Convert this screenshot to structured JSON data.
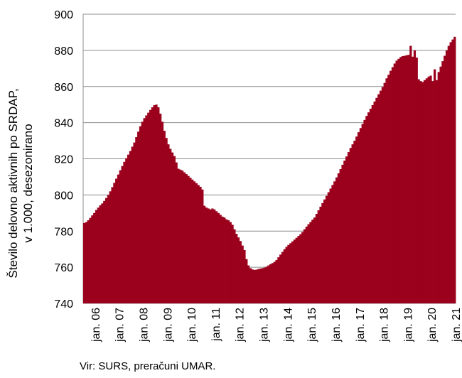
{
  "chart_data": {
    "type": "area",
    "ylabel_line1": "Število delovno aktivnih po SRDAP,",
    "ylabel_line2": "v 1.000, desezonirano",
    "ylim": [
      740,
      900
    ],
    "yticks": [
      740,
      760,
      780,
      800,
      820,
      840,
      860,
      880,
      900
    ],
    "xtick_labels": [
      "jan. 06",
      "jan. 07",
      "jan. 08",
      "jan. 09",
      "jan. 10",
      "jan. 11",
      "jan. 12",
      "jan. 13",
      "jan. 14",
      "jan. 15",
      "jan. 16",
      "jan. 17",
      "jan. 18",
      "jan. 19",
      "jan. 20",
      "jan. 21"
    ],
    "grid": true,
    "color": "#9b001c",
    "series": [
      {
        "start": "jan. 06",
        "frequency": "monthly",
        "values": [
          784.5,
          785.0,
          786.0,
          787.3,
          788.7,
          790.0,
          791.7,
          793.0,
          794.3,
          795.3,
          796.7,
          798.3,
          800.0,
          802.0,
          804.3,
          806.7,
          809.0,
          811.3,
          813.7,
          816.0,
          818.3,
          820.3,
          822.3,
          824.3,
          826.7,
          829.0,
          832.0,
          835.0,
          838.0,
          840.5,
          842.5,
          844.0,
          845.5,
          847.0,
          848.5,
          849.7,
          850.0,
          848.5,
          845.0,
          840.5,
          835.5,
          831.5,
          828.0,
          825.5,
          823.5,
          821.5,
          818.0,
          814.5,
          814.0,
          813.5,
          812.5,
          811.5,
          810.5,
          809.5,
          808.5,
          807.5,
          806.5,
          805.5,
          804.5,
          803.0,
          794.0,
          793.0,
          792.5,
          792.0,
          792.5,
          792.0,
          791.0,
          790.0,
          789.0,
          788.0,
          787.5,
          786.5,
          786.0,
          785.0,
          783.5,
          781.0,
          778.5,
          776.5,
          774.5,
          772.0,
          769.5,
          764.5,
          761.0,
          759.5,
          758.8,
          758.5,
          758.7,
          759.0,
          759.3,
          759.5,
          759.8,
          760.3,
          761.0,
          761.7,
          762.3,
          763.0,
          764.0,
          765.5,
          767.0,
          768.5,
          770.0,
          771.3,
          772.3,
          773.3,
          774.3,
          775.3,
          776.3,
          777.3,
          778.3,
          779.5,
          781.0,
          782.5,
          783.8,
          785.0,
          786.3,
          787.5,
          789.5,
          791.5,
          793.5,
          795.5,
          797.5,
          799.5,
          801.5,
          803.5,
          805.5,
          807.5,
          809.7,
          812.0,
          814.3,
          816.7,
          819.0,
          821.3,
          823.7,
          826.0,
          828.0,
          830.0,
          832.3,
          834.7,
          837.0,
          839.3,
          841.5,
          843.7,
          845.7,
          847.7,
          849.7,
          851.7,
          853.7,
          855.7,
          857.7,
          859.7,
          862.0,
          864.5,
          866.5,
          868.7,
          870.7,
          872.7,
          874.3,
          875.3,
          876.3,
          876.8,
          877.0,
          877.3,
          877.5,
          882.5,
          876.5,
          880.0,
          876.0,
          864.0,
          863.0,
          862.5,
          863.5,
          864.5,
          865.5,
          866.0,
          863.0,
          869.5,
          863.5,
          868.0,
          871.0,
          874.0,
          877.0,
          880.0,
          882.5,
          884.5,
          886.0,
          887.5
        ]
      }
    ],
    "source": "Vir: SURS, preračuni UMAR."
  }
}
